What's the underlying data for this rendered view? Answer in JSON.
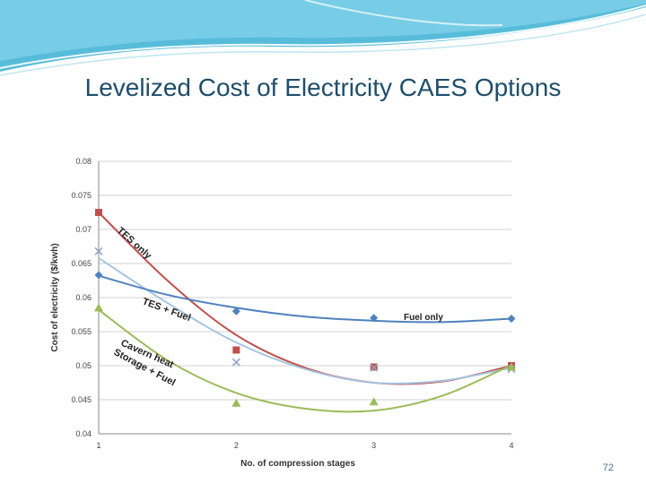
{
  "slide": {
    "title": "Levelized Cost of Electricity CAES Options",
    "page_number": "72"
  },
  "chart_data": {
    "type": "scatter",
    "title": "",
    "xlabel": "No. of compression stages",
    "ylabel": "Cost of electricity ($/kwh)",
    "xlim": [
      1,
      4
    ],
    "ylim": [
      0.04,
      0.08
    ],
    "x_ticks": [
      "1",
      "2",
      "3",
      "4"
    ],
    "y_ticks": [
      "0.04",
      "0.045",
      "0.05",
      "0.055",
      "0.06",
      "0.065",
      "0.07",
      "0.075",
      "0.08"
    ],
    "grid": true,
    "series": [
      {
        "name": "TES only",
        "color": "#c0504d",
        "marker": "square",
        "x": [
          1,
          2,
          3,
          4
        ],
        "y": [
          0.0725,
          0.0523,
          0.0498,
          0.05
        ],
        "trend": [
          [
            1,
            0.0725
          ],
          [
            1.5,
            0.0625
          ],
          [
            2,
            0.0545
          ],
          [
            2.5,
            0.0497
          ],
          [
            3,
            0.0475
          ],
          [
            3.5,
            0.0477
          ],
          [
            4,
            0.05
          ]
        ]
      },
      {
        "name": "TES + Fuel",
        "color": "#a6c5e0",
        "marker": "x",
        "x": [
          1,
          2,
          3,
          4
        ],
        "y": [
          0.0668,
          0.0505,
          0.0497,
          0.0495
        ],
        "trend": [
          [
            1,
            0.0658
          ],
          [
            1.5,
            0.0592
          ],
          [
            2,
            0.0534
          ],
          [
            2.5,
            0.0495
          ],
          [
            3,
            0.0475
          ],
          [
            3.5,
            0.0478
          ],
          [
            4,
            0.0497
          ]
        ]
      },
      {
        "name": "Fuel only",
        "color": "#4f81bd",
        "marker": "diamond",
        "x": [
          1,
          2,
          3,
          4
        ],
        "y": [
          0.0633,
          0.058,
          0.057,
          0.0569
        ],
        "trend": [
          [
            1,
            0.0632
          ],
          [
            1.5,
            0.0604
          ],
          [
            2,
            0.0585
          ],
          [
            2.5,
            0.0572
          ],
          [
            3,
            0.0566
          ],
          [
            3.5,
            0.0564
          ],
          [
            4,
            0.0569
          ]
        ]
      },
      {
        "name": "Cavern heat Storage + Fuel",
        "color": "#9bbb59",
        "marker": "triangle",
        "x": [
          1,
          2,
          3,
          4
        ],
        "y": [
          0.0585,
          0.0445,
          0.0447,
          0.0498
        ],
        "trend": [
          [
            1,
            0.0582
          ],
          [
            1.5,
            0.0508
          ],
          [
            2,
            0.046
          ],
          [
            2.5,
            0.0437
          ],
          [
            3,
            0.0434
          ],
          [
            3.5,
            0.0456
          ],
          [
            4,
            0.0501
          ]
        ]
      }
    ],
    "annotations": [
      {
        "id": "tes-only",
        "text": "TES only"
      },
      {
        "id": "tes-fuel",
        "text": "TES + Fuel"
      },
      {
        "id": "fuel-only",
        "text": "Fuel only"
      },
      {
        "id": "cavern-1",
        "text": "Cavern heat"
      },
      {
        "id": "cavern-2",
        "text": "Storage + Fuel"
      }
    ]
  }
}
